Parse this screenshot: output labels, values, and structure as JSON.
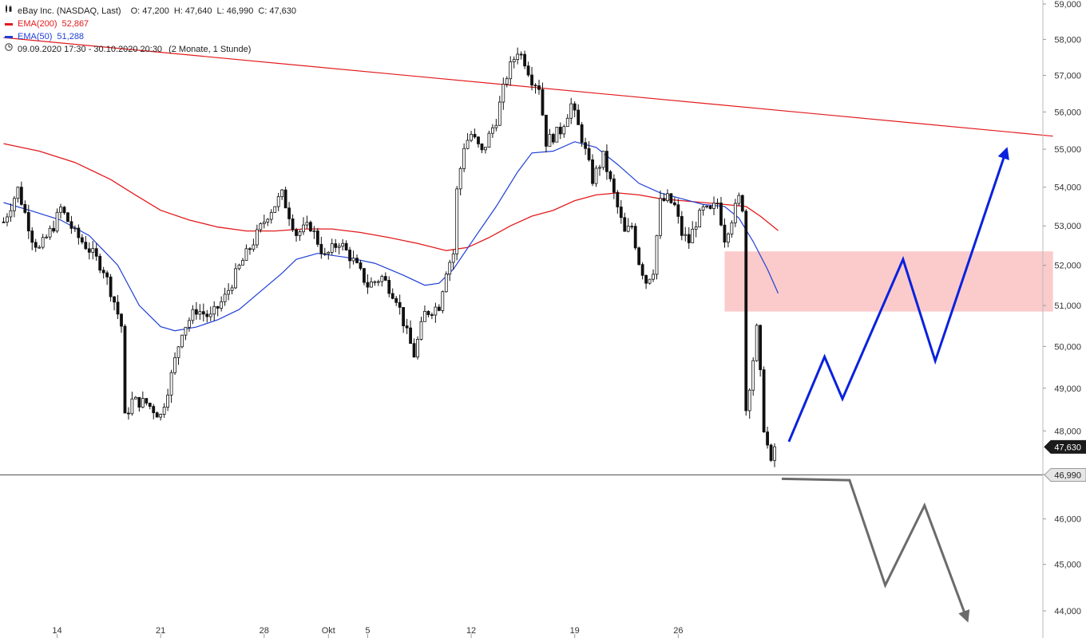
{
  "legend": {
    "instrument": "eBay Inc. (NASDAQ, Last)",
    "open_label": "O:",
    "open": "47,200",
    "high_label": "H:",
    "high": "47,640",
    "low_label": "L:",
    "low": "46,990",
    "close_label": "C:",
    "close": "47,630",
    "ema200_label": "EMA(200)",
    "ema200_value": "52,867",
    "ema50_label": "EMA(50)",
    "ema50_value": "51,288",
    "period": "09.09.2020 17:30 - 30.10.2020 20:30",
    "period_note": "(2 Monate, 1 Stunde)"
  },
  "colors": {
    "ema200": "#e31a1c",
    "ema50": "#1f3fd6",
    "bull_path": "#0a22dd",
    "bear_path": "#6b6b6b",
    "zone_fill": "#fbc8c8",
    "candle": "#111111",
    "trendline": "#e31a1c",
    "axis_text": "#333333"
  },
  "chart_data": {
    "type": "candlestick",
    "title": "eBay Inc. (NASDAQ, Last)",
    "interval": "1 Stunde",
    "y_scale": "log",
    "ylim": [
      43700,
      59000
    ],
    "y_ticks": [
      44000,
      45000,
      46000,
      47000,
      48000,
      49000,
      50000,
      51000,
      52000,
      53000,
      54000,
      55000,
      56000,
      57000,
      58000,
      59000
    ],
    "y_tick_labels": [
      "44,000",
      "45,000",
      "46,000",
      "47,000",
      "48,000",
      "49,000",
      "50,000",
      "51,000",
      "52,000",
      "53,000",
      "54,000",
      "55,000",
      "56,000",
      "57,000",
      "58,000",
      "59,000"
    ],
    "x_index_range": [
      0,
      176
    ],
    "x_ticks": [
      {
        "label": "14",
        "index": 15
      },
      {
        "label": "21",
        "index": 44
      },
      {
        "label": "28",
        "index": 73
      },
      {
        "label": "Okt",
        "index": 91
      },
      {
        "label": "5",
        "index": 102
      },
      {
        "label": "12",
        "index": 131
      },
      {
        "label": "19",
        "index": 160
      },
      {
        "label": "26",
        "index": 189
      }
    ],
    "price_markers": [
      {
        "label": "47,630",
        "value": 47630,
        "style": "dark"
      },
      {
        "label": "46,990",
        "value": 46990,
        "style": "light"
      }
    ],
    "horizontal_line": 46990,
    "trendline": [
      {
        "x": 0,
        "y": 58050
      },
      {
        "x": 294,
        "y": 55350
      }
    ],
    "resistance_zone": {
      "x_from": 202,
      "x_to": 294,
      "y_from": 50850,
      "y_to": 52350
    },
    "ema50_series": [
      {
        "x": 0,
        "y": 53600
      },
      {
        "x": 8,
        "y": 53380
      },
      {
        "x": 16,
        "y": 53150
      },
      {
        "x": 24,
        "y": 52750
      },
      {
        "x": 32,
        "y": 52000
      },
      {
        "x": 38,
        "y": 51000
      },
      {
        "x": 44,
        "y": 50480
      },
      {
        "x": 48,
        "y": 50380
      },
      {
        "x": 54,
        "y": 50470
      },
      {
        "x": 60,
        "y": 50650
      },
      {
        "x": 66,
        "y": 50900
      },
      {
        "x": 72,
        "y": 51350
      },
      {
        "x": 78,
        "y": 51800
      },
      {
        "x": 82,
        "y": 52150
      },
      {
        "x": 88,
        "y": 52300
      },
      {
        "x": 96,
        "y": 52200
      },
      {
        "x": 104,
        "y": 52050
      },
      {
        "x": 112,
        "y": 51750
      },
      {
        "x": 118,
        "y": 51500
      },
      {
        "x": 122,
        "y": 51550
      },
      {
        "x": 126,
        "y": 51900
      },
      {
        "x": 132,
        "y": 52700
      },
      {
        "x": 138,
        "y": 53500
      },
      {
        "x": 144,
        "y": 54400
      },
      {
        "x": 148,
        "y": 54900
      },
      {
        "x": 154,
        "y": 54950
      },
      {
        "x": 160,
        "y": 55200
      },
      {
        "x": 166,
        "y": 55050
      },
      {
        "x": 172,
        "y": 54600
      },
      {
        "x": 178,
        "y": 54100
      },
      {
        "x": 184,
        "y": 53850
      },
      {
        "x": 190,
        "y": 53700
      },
      {
        "x": 196,
        "y": 53550
      },
      {
        "x": 202,
        "y": 53500
      },
      {
        "x": 206,
        "y": 53200
      },
      {
        "x": 210,
        "y": 52600
      },
      {
        "x": 214,
        "y": 51900
      },
      {
        "x": 217,
        "y": 51300
      }
    ],
    "ema200_series": [
      {
        "x": 0,
        "y": 55150
      },
      {
        "x": 10,
        "y": 54950
      },
      {
        "x": 20,
        "y": 54650
      },
      {
        "x": 30,
        "y": 54200
      },
      {
        "x": 36,
        "y": 53850
      },
      {
        "x": 44,
        "y": 53400
      },
      {
        "x": 52,
        "y": 53150
      },
      {
        "x": 60,
        "y": 52970
      },
      {
        "x": 68,
        "y": 52870
      },
      {
        "x": 76,
        "y": 52870
      },
      {
        "x": 84,
        "y": 52920
      },
      {
        "x": 92,
        "y": 52920
      },
      {
        "x": 100,
        "y": 52830
      },
      {
        "x": 108,
        "y": 52700
      },
      {
        "x": 116,
        "y": 52550
      },
      {
        "x": 124,
        "y": 52370
      },
      {
        "x": 130,
        "y": 52450
      },
      {
        "x": 136,
        "y": 52700
      },
      {
        "x": 142,
        "y": 53000
      },
      {
        "x": 148,
        "y": 53250
      },
      {
        "x": 154,
        "y": 53400
      },
      {
        "x": 160,
        "y": 53650
      },
      {
        "x": 166,
        "y": 53800
      },
      {
        "x": 172,
        "y": 53850
      },
      {
        "x": 178,
        "y": 53800
      },
      {
        "x": 184,
        "y": 53700
      },
      {
        "x": 190,
        "y": 53650
      },
      {
        "x": 196,
        "y": 53600
      },
      {
        "x": 202,
        "y": 53550
      },
      {
        "x": 208,
        "y": 53500
      },
      {
        "x": 212,
        "y": 53250
      },
      {
        "x": 217,
        "y": 52880
      }
    ],
    "bull_projection": [
      {
        "x": 220,
        "y": 47750
      },
      {
        "x": 230,
        "y": 49750
      },
      {
        "x": 235,
        "y": 48750
      },
      {
        "x": 252,
        "y": 52150
      },
      {
        "x": 261,
        "y": 49650
      },
      {
        "x": 281,
        "y": 55000
      }
    ],
    "bear_projection": [
      {
        "x": 218,
        "y": 46900
      },
      {
        "x": 237,
        "y": 46870
      },
      {
        "x": 247,
        "y": 44550
      },
      {
        "x": 258,
        "y": 46300
      },
      {
        "x": 270,
        "y": 43800
      }
    ],
    "price_path": [
      {
        "i": 0,
        "p": 53100
      },
      {
        "i": 4,
        "p": 53950
      },
      {
        "i": 8,
        "p": 52700
      },
      {
        "i": 10,
        "p": 52400
      },
      {
        "i": 14,
        "p": 53000
      },
      {
        "i": 16,
        "p": 53450
      },
      {
        "i": 20,
        "p": 52800
      },
      {
        "i": 24,
        "p": 52400
      },
      {
        "i": 28,
        "p": 51900
      },
      {
        "i": 31,
        "p": 51100
      },
      {
        "i": 33,
        "p": 50500
      },
      {
        "i": 34,
        "p": 48300
      },
      {
        "i": 36,
        "p": 48700
      },
      {
        "i": 40,
        "p": 48650
      },
      {
        "i": 44,
        "p": 48350
      },
      {
        "i": 47,
        "p": 49300
      },
      {
        "i": 50,
        "p": 50400
      },
      {
        "i": 54,
        "p": 50900
      },
      {
        "i": 58,
        "p": 50700
      },
      {
        "i": 62,
        "p": 51200
      },
      {
        "i": 66,
        "p": 51950
      },
      {
        "i": 70,
        "p": 52600
      },
      {
        "i": 74,
        "p": 53300
      },
      {
        "i": 78,
        "p": 53800
      },
      {
        "i": 80,
        "p": 53300
      },
      {
        "i": 82,
        "p": 52800
      },
      {
        "i": 86,
        "p": 53000
      },
      {
        "i": 90,
        "p": 52200
      },
      {
        "i": 94,
        "p": 52600
      },
      {
        "i": 98,
        "p": 52100
      },
      {
        "i": 102,
        "p": 51500
      },
      {
        "i": 106,
        "p": 51700
      },
      {
        "i": 110,
        "p": 51200
      },
      {
        "i": 113,
        "p": 50300
      },
      {
        "i": 115,
        "p": 49800
      },
      {
        "i": 118,
        "p": 50800
      },
      {
        "i": 122,
        "p": 51000
      },
      {
        "i": 124,
        "p": 51900
      },
      {
        "i": 126,
        "p": 52300
      },
      {
        "i": 127,
        "p": 53900
      },
      {
        "i": 129,
        "p": 55100
      },
      {
        "i": 131,
        "p": 55400
      },
      {
        "i": 134,
        "p": 54900
      },
      {
        "i": 138,
        "p": 55800
      },
      {
        "i": 141,
        "p": 57000
      },
      {
        "i": 144,
        "p": 57700
      },
      {
        "i": 146,
        "p": 57400
      },
      {
        "i": 148,
        "p": 56900
      },
      {
        "i": 150,
        "p": 56700
      },
      {
        "i": 152,
        "p": 55200
      },
      {
        "i": 156,
        "p": 55500
      },
      {
        "i": 159,
        "p": 56200
      },
      {
        "i": 162,
        "p": 55300
      },
      {
        "i": 165,
        "p": 54200
      },
      {
        "i": 168,
        "p": 54800
      },
      {
        "i": 171,
        "p": 53800
      },
      {
        "i": 174,
        "p": 52800
      },
      {
        "i": 176,
        "p": 53000
      },
      {
        "i": 178,
        "p": 52100
      },
      {
        "i": 180,
        "p": 51600
      },
      {
        "i": 182,
        "p": 51900
      },
      {
        "i": 184,
        "p": 53600
      },
      {
        "i": 186,
        "p": 53700
      },
      {
        "i": 188,
        "p": 53500
      },
      {
        "i": 190,
        "p": 52800
      },
      {
        "i": 192,
        "p": 52600
      },
      {
        "i": 194,
        "p": 53100
      },
      {
        "i": 196,
        "p": 53400
      },
      {
        "i": 198,
        "p": 53350
      },
      {
        "i": 200,
        "p": 53600
      },
      {
        "i": 202,
        "p": 52700
      },
      {
        "i": 204,
        "p": 53200
      },
      {
        "i": 206,
        "p": 53700
      },
      {
        "i": 207,
        "p": 53500
      },
      {
        "i": 208,
        "p": 48500
      },
      {
        "i": 210,
        "p": 49700
      },
      {
        "i": 211,
        "p": 50400
      },
      {
        "i": 212,
        "p": 49300
      },
      {
        "i": 213,
        "p": 48100
      },
      {
        "i": 215,
        "p": 47200
      },
      {
        "i": 216,
        "p": 47630
      }
    ],
    "candle_count": 217
  }
}
